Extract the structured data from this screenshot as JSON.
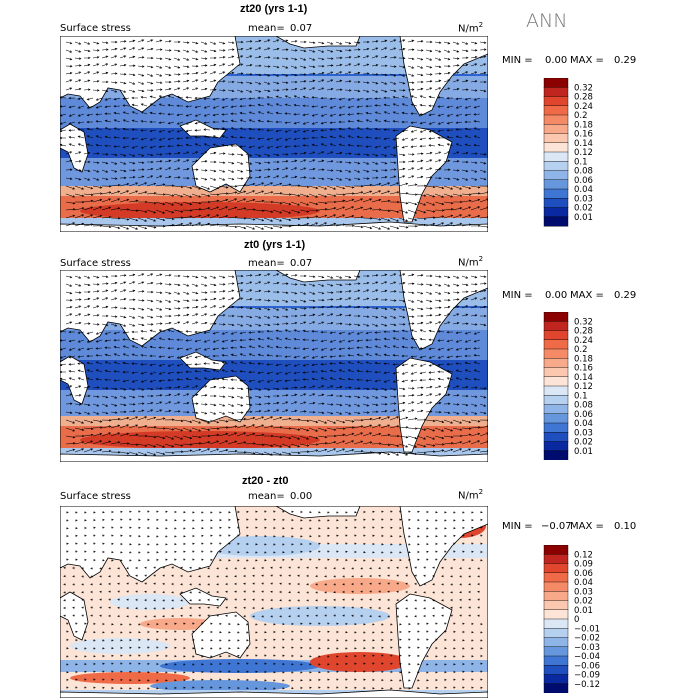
{
  "season": "ANN",
  "chart_data": [
    {
      "type": "map",
      "title": "zt20 (yrs 1-1)",
      "left_label": "Surface stress",
      "mean_label": "mean=",
      "mean": "0.07",
      "units": "N/m",
      "units_sup": "2",
      "min_label": "MIN =",
      "min": "0.00",
      "max_label": "MAX =",
      "max": "0.29",
      "colorbar_levels": [
        "0.32",
        "0.28",
        "0.24",
        "0.2",
        "0.18",
        "0.16",
        "0.14",
        "0.12",
        "0.1",
        "0.08",
        "0.06",
        "0.04",
        "0.03",
        "0.02",
        "0.01"
      ],
      "colorbar_colors": [
        "#8b0000",
        "#c0261f",
        "#e0462d",
        "#ef6a47",
        "#f58a67",
        "#f8a98a",
        "#fbc7ae",
        "#fce4d6",
        "#dbe7f5",
        "#b6d0ef",
        "#8fb5e8",
        "#6697dd",
        "#3f75d3",
        "#1f4fbf",
        "#0a28a0",
        "#000b6e"
      ],
      "palette": "positive"
    },
    {
      "type": "map",
      "title": "zt0 (yrs 1-1)",
      "left_label": "Surface stress",
      "mean_label": "mean=",
      "mean": "0.07",
      "units": "N/m",
      "units_sup": "2",
      "min_label": "MIN =",
      "min": "0.00",
      "max_label": "MAX =",
      "max": "0.29",
      "colorbar_levels": [
        "0.32",
        "0.28",
        "0.24",
        "0.2",
        "0.18",
        "0.16",
        "0.14",
        "0.12",
        "0.1",
        "0.08",
        "0.06",
        "0.04",
        "0.03",
        "0.02",
        "0.01"
      ],
      "colorbar_colors": [
        "#8b0000",
        "#c0261f",
        "#e0462d",
        "#ef6a47",
        "#f58a67",
        "#f8a98a",
        "#fbc7ae",
        "#fce4d6",
        "#dbe7f5",
        "#b6d0ef",
        "#8fb5e8",
        "#6697dd",
        "#3f75d3",
        "#1f4fbf",
        "#0a28a0",
        "#000b6e"
      ],
      "palette": "positive"
    },
    {
      "type": "map",
      "title": "zt20 - zt0",
      "left_label": "Surface stress",
      "mean_label": "mean=",
      "mean": "0.00",
      "units": "N/m",
      "units_sup": "2",
      "min_label": "MIN =",
      "min": "−0.07",
      "max_label": "MAX =",
      "max": "0.10",
      "colorbar_levels": [
        "0.12",
        "0.09",
        "0.06",
        "0.04",
        "0.03",
        "0.02",
        "0.01",
        "0",
        "−0.01",
        "−0.02",
        "−0.03",
        "−0.04",
        "−0.06",
        "−0.09",
        "−0.12"
      ],
      "colorbar_colors": [
        "#8b0000",
        "#c0261f",
        "#e0462d",
        "#ef6a47",
        "#f58a67",
        "#f8a98a",
        "#fbc7ae",
        "#fce4d6",
        "#dbe7f5",
        "#b6d0ef",
        "#8fb5e8",
        "#6697dd",
        "#3f75d3",
        "#1f4fbf",
        "#0a28a0",
        "#000b6e"
      ],
      "palette": "diff"
    }
  ]
}
